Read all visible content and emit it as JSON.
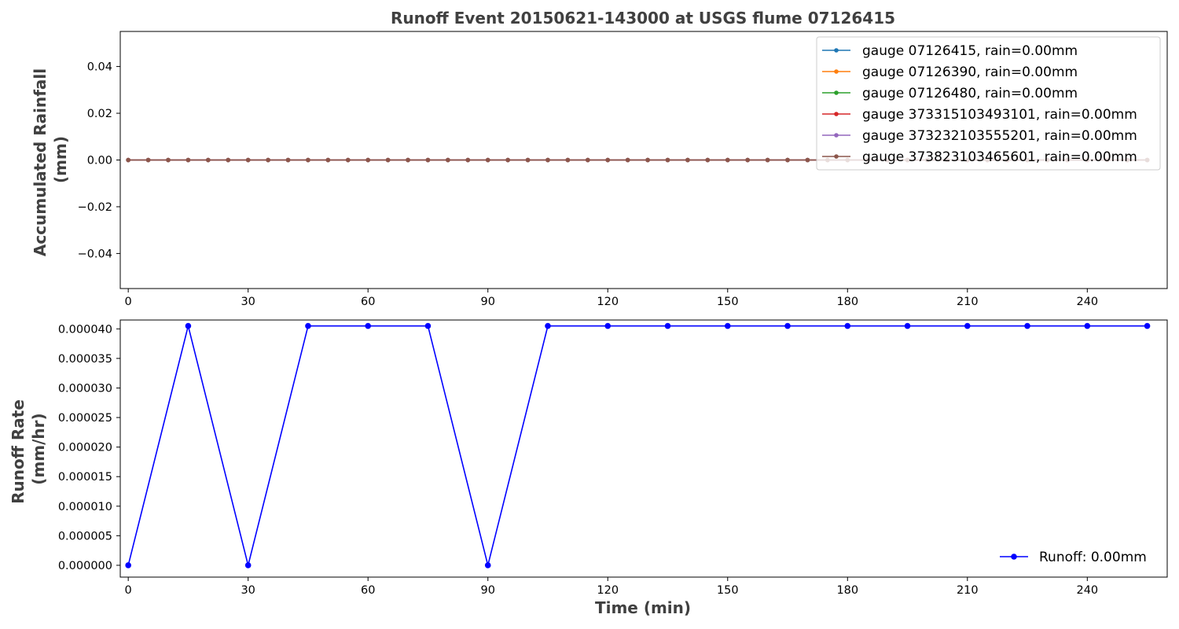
{
  "figure": {
    "title": "Runoff Event 20150621-143000 at USGS flume 07126415"
  },
  "chart_data": [
    {
      "type": "line",
      "ylabel": [
        "Accumulated Rainfall",
        "(mm)"
      ],
      "xlabel": "",
      "xlim": [
        -2,
        260
      ],
      "ylim": [
        -0.055,
        0.055
      ],
      "xticks": [
        0,
        30,
        60,
        90,
        120,
        150,
        180,
        210,
        240
      ],
      "xtick_labels": [
        "0",
        "30",
        "60",
        "90",
        "120",
        "150",
        "180",
        "210",
        "240"
      ],
      "yticks": [
        -0.04,
        -0.02,
        0.0,
        0.02,
        0.04
      ],
      "ytick_labels": [
        "−0.04",
        "−0.02",
        "0.00",
        "0.02",
        "0.04"
      ],
      "legend_placement": "top-right",
      "x": [
        0,
        5,
        10,
        15,
        20,
        25,
        30,
        35,
        40,
        45,
        50,
        55,
        60,
        65,
        70,
        75,
        80,
        85,
        90,
        95,
        100,
        105,
        110,
        115,
        120,
        125,
        130,
        135,
        140,
        145,
        150,
        155,
        160,
        165,
        170,
        175,
        180,
        185,
        190,
        195,
        200,
        205,
        210,
        215,
        220,
        225,
        230,
        235,
        240,
        245,
        250,
        255
      ],
      "series": [
        {
          "name": "gauge 07126415, rain=0.00mm",
          "color": "#1f77b4",
          "value": 0
        },
        {
          "name": "gauge 07126390, rain=0.00mm",
          "color": "#ff7f0e",
          "value": 0
        },
        {
          "name": "gauge 07126480, rain=0.00mm",
          "color": "#2ca02c",
          "value": 0
        },
        {
          "name": "gauge 373315103493101, rain=0.00mm",
          "color": "#d62728",
          "value": 0
        },
        {
          "name": "gauge 373232103555201, rain=0.00mm",
          "color": "#9467bd",
          "value": 0
        },
        {
          "name": "gauge 373823103465601, rain=0.00mm",
          "color": "#8c564b",
          "value": 0
        }
      ]
    },
    {
      "type": "line",
      "ylabel": [
        "Runoff Rate",
        "(mm/hr)"
      ],
      "xlabel": "Time (min)",
      "xlim": [
        -2,
        260
      ],
      "ylim": [
        -2e-06,
        4.15e-05
      ],
      "xticks": [
        0,
        30,
        60,
        90,
        120,
        150,
        180,
        210,
        240
      ],
      "xtick_labels": [
        "0",
        "30",
        "60",
        "90",
        "120",
        "150",
        "180",
        "210",
        "240"
      ],
      "yticks": [
        0,
        5e-06,
        1e-05,
        1.5e-05,
        2e-05,
        2.5e-05,
        3e-05,
        3.5e-05,
        4e-05
      ],
      "ytick_labels": [
        "0.000000",
        "0.000005",
        "0.000010",
        "0.000015",
        "0.000020",
        "0.000025",
        "0.000030",
        "0.000035",
        "0.000040"
      ],
      "legend_placement": "bottom-right",
      "x": [
        0,
        15,
        30,
        45,
        60,
        75,
        90,
        105,
        120,
        135,
        150,
        165,
        180,
        195,
        210,
        225,
        240,
        255
      ],
      "series": [
        {
          "name": "Runoff: 0.00mm",
          "color": "#0000ff",
          "values": [
            0,
            4.05e-05,
            0,
            4.05e-05,
            4.05e-05,
            4.05e-05,
            0,
            4.05e-05,
            4.05e-05,
            4.05e-05,
            4.05e-05,
            4.05e-05,
            4.05e-05,
            4.05e-05,
            4.05e-05,
            4.05e-05,
            4.05e-05,
            4.05e-05
          ]
        }
      ]
    }
  ]
}
